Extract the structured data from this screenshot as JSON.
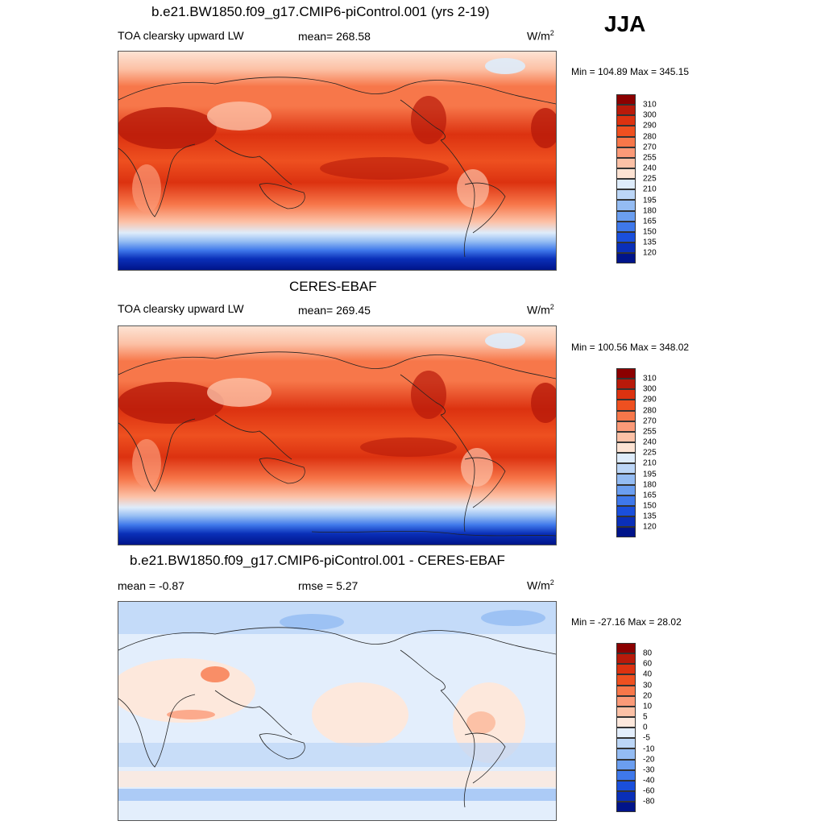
{
  "season": "JJA",
  "panels": [
    {
      "title": "b.e21.BW1850.f09_g17.CMIP6-piControl.001 (yrs 2-19)",
      "left_label": "TOA clearsky upward LW",
      "center_label": "mean= 268.58",
      "units": "W/m",
      "units_sup": "2",
      "minmax": "Min = 104.89 Max = 345.15"
    },
    {
      "title": "CERES-EBAF",
      "left_label": "TOA clearsky upward LW",
      "center_label": "mean= 269.45",
      "units": "W/m",
      "units_sup": "2",
      "minmax": "Min = 100.56 Max = 348.02"
    },
    {
      "title": "b.e21.BW1850.f09_g17.CMIP6-piControl.001 - CERES-EBAF",
      "left_label": "mean =  -0.87",
      "center_label": "rmse =   5.27",
      "units": "W/m",
      "units_sup": "2",
      "minmax": "Min = -27.16 Max =  28.02"
    }
  ],
  "colorbars": {
    "absolute": {
      "labels": [
        "310",
        "300",
        "290",
        "280",
        "270",
        "255",
        "240",
        "225",
        "210",
        "195",
        "180",
        "165",
        "150",
        "135",
        "120"
      ],
      "colors": [
        "#8b0000",
        "#b81a0a",
        "#dc3210",
        "#ee5020",
        "#f7774a",
        "#fb9a78",
        "#fcc1a6",
        "#fde3d3",
        "#deecfb",
        "#bcd6f7",
        "#94bcf3",
        "#6b9ef0",
        "#3f78ea",
        "#1a4fdb",
        "#0a2fb8",
        "#00148a"
      ]
    },
    "difference": {
      "labels": [
        "80",
        "60",
        "40",
        "30",
        "20",
        "10",
        "5",
        "0",
        "-5",
        "-10",
        "-20",
        "-30",
        "-40",
        "-60",
        "-80"
      ],
      "colors": [
        "#8b0000",
        "#b81a0a",
        "#dc3210",
        "#ee5020",
        "#f7774a",
        "#fb9a78",
        "#fcc1a6",
        "#fde8dc",
        "#e3eefc",
        "#bcd6f7",
        "#94bcf3",
        "#6b9ef0",
        "#3f78ea",
        "#1a4fdb",
        "#0a2fb8",
        "#00148a"
      ]
    }
  }
}
